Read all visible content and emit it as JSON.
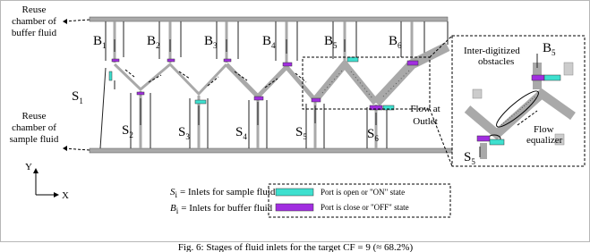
{
  "reuse_buffer": [
    "Reuse",
    "chamber of",
    "buffer fluid"
  ],
  "reuse_sample": [
    "Reuse",
    "chamber of",
    "sample fluid"
  ],
  "buffer_inlets": [
    {
      "base": "B",
      "sub": "1"
    },
    {
      "base": "B",
      "sub": "2"
    },
    {
      "base": "B",
      "sub": "3"
    },
    {
      "base": "B",
      "sub": "4"
    },
    {
      "base": "B",
      "sub": "5"
    },
    {
      "base": "B",
      "sub": "6"
    }
  ],
  "sample_inlets": [
    {
      "base": "S",
      "sub": "1"
    },
    {
      "base": "S",
      "sub": "2"
    },
    {
      "base": "S",
      "sub": "3"
    },
    {
      "base": "S",
      "sub": "4"
    },
    {
      "base": "S",
      "sub": "5"
    },
    {
      "base": "S",
      "sub": "6"
    }
  ],
  "outlet": [
    "Flow at",
    "Outlet"
  ],
  "inset": {
    "obstacles": [
      "Inter-digitized",
      "obstacles"
    ],
    "equalizer": [
      "Flow",
      "equalizer"
    ],
    "buffer": {
      "base": "B",
      "sub": "5"
    },
    "sample": {
      "base": "S",
      "sub": "5"
    }
  },
  "axes": {
    "y": "Y",
    "x": "X"
  },
  "key": {
    "sample": {
      "base": "S",
      "sub": "i",
      "text": "= Inlets for sample fluid"
    },
    "buffer": {
      "base": "B",
      "sub": "i",
      "text": "= Inlets for buffer fluid"
    }
  },
  "legend": {
    "on": "Port is open or \"ON\" state",
    "off": "Port is close or \"OFF\" state"
  },
  "caption": "Fig. 6:  Stages of fluid inlets for the target CF = 9 (≈ 68.2%)"
}
